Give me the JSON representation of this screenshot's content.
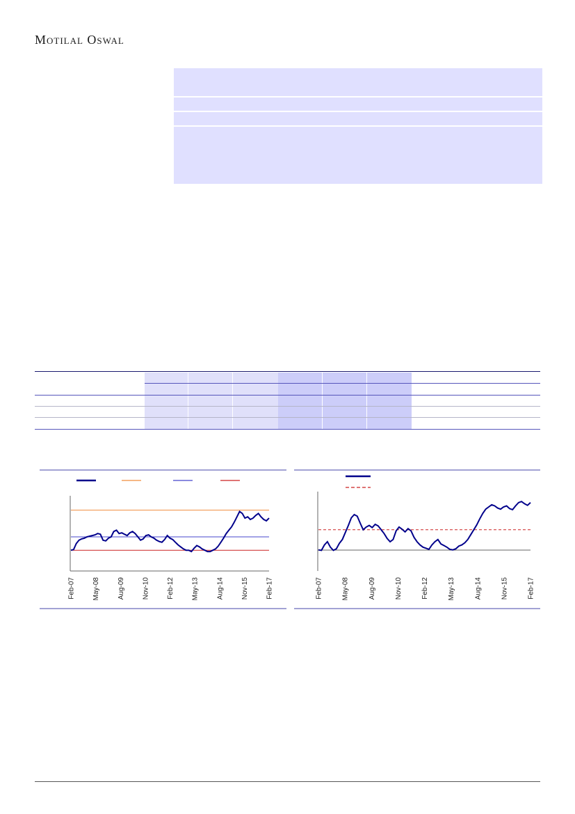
{
  "header": {
    "brand": "Motilal Oswal"
  },
  "chart_data": [
    {
      "type": "line",
      "x_ticks": [
        "Feb-07",
        "May-08",
        "Aug-09",
        "Nov-10",
        "Feb-12",
        "May-13",
        "Aug-14",
        "Nov-15",
        "Feb-17"
      ],
      "ylim": [
        0,
        100
      ],
      "series": [
        {
          "color": "#00008b",
          "style": "solid",
          "values": [
            30,
            31,
            40,
            45,
            47,
            48,
            50,
            51,
            52,
            53,
            55,
            54,
            45,
            44,
            48,
            50,
            58,
            60,
            55,
            56,
            54,
            52,
            56,
            58,
            55,
            50,
            45,
            47,
            52,
            53,
            50,
            48,
            45,
            43,
            42,
            46,
            52,
            48,
            46,
            42,
            38,
            35,
            32,
            30,
            30,
            28,
            33,
            37,
            35,
            32,
            30,
            28,
            28,
            30,
            32,
            36,
            42,
            48,
            55,
            60,
            65,
            72,
            80,
            88,
            85,
            78,
            80,
            76,
            78,
            82,
            85,
            80,
            76,
            74,
            78
          ]
        },
        {
          "color": "#f08c3c",
          "style": "solid",
          "values": [
            90
          ]
        },
        {
          "color": "#4444cc",
          "style": "solid",
          "values": [
            50
          ]
        },
        {
          "color": "#cc2222",
          "style": "solid",
          "values": [
            30
          ]
        }
      ],
      "legend_colors": [
        "#00008b",
        "#f08c3c",
        "#4444cc",
        "#cc2222"
      ]
    },
    {
      "type": "line",
      "x_ticks": [
        "Feb-07",
        "May-08",
        "Aug-09",
        "Nov-10",
        "Feb-12",
        "May-13",
        "Aug-14",
        "Nov-15",
        "Feb-17"
      ],
      "ylim": [
        0,
        100
      ],
      "series": [
        {
          "color": "#00008b",
          "style": "solid",
          "values": [
            3,
            2,
            12,
            18,
            8,
            2,
            5,
            15,
            22,
            35,
            48,
            62,
            68,
            65,
            52,
            40,
            45,
            48,
            44,
            50,
            47,
            40,
            33,
            24,
            18,
            22,
            38,
            45,
            41,
            36,
            42,
            38,
            26,
            18,
            12,
            8,
            6,
            4,
            12,
            18,
            22,
            14,
            11,
            8,
            4,
            3,
            5,
            10,
            12,
            16,
            22,
            31,
            40,
            49,
            60,
            70,
            78,
            82,
            86,
            84,
            80,
            78,
            82,
            84,
            79,
            77,
            84,
            90,
            92,
            88,
            85,
            90
          ]
        },
        {
          "color": "#cc2222",
          "style": "dashed",
          "values": [
            40
          ]
        }
      ],
      "legend_colors": [
        "#00008b",
        "#cc2222"
      ]
    }
  ]
}
